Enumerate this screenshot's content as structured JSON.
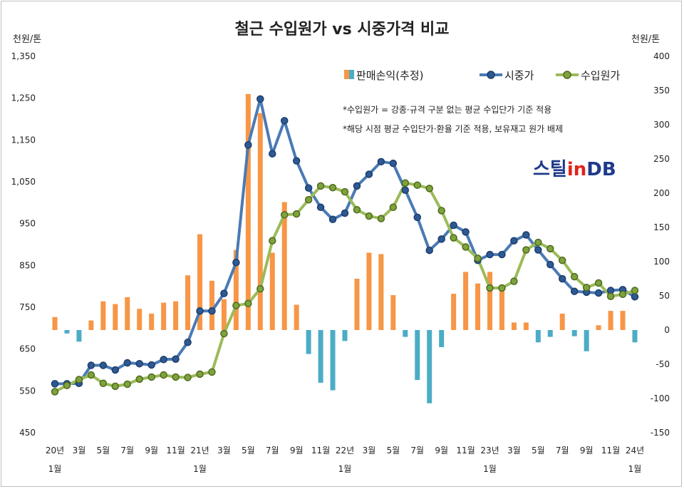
{
  "chart_data": {
    "type": "bar+line",
    "title": "철근 수입원가 vs 시중가격 비교",
    "y_left_unit": "천원/톤",
    "y_right_unit": "천원/톤",
    "y_left_ticks": [
      "1,350",
      "1,250",
      "1,150",
      "1,050",
      "950",
      "850",
      "750",
      "650",
      "550",
      "450"
    ],
    "y_left_range": [
      450,
      1350
    ],
    "y_right_ticks": [
      "400",
      "350",
      "300",
      "250",
      "200",
      "150",
      "100",
      "50",
      "0",
      "-50",
      "-100",
      "-150"
    ],
    "y_right_range": [
      -150,
      400
    ],
    "x_tick_labels": [
      {
        "i": 0,
        "label": "20년",
        "sub": "1월"
      },
      {
        "i": 2,
        "label": "3월"
      },
      {
        "i": 4,
        "label": "5월"
      },
      {
        "i": 6,
        "label": "7월"
      },
      {
        "i": 8,
        "label": "9월"
      },
      {
        "i": 10,
        "label": "11월"
      },
      {
        "i": 12,
        "label": "21년",
        "sub": "1월"
      },
      {
        "i": 14,
        "label": "3월"
      },
      {
        "i": 16,
        "label": "5월"
      },
      {
        "i": 18,
        "label": "7월"
      },
      {
        "i": 20,
        "label": "9월"
      },
      {
        "i": 22,
        "label": "11월"
      },
      {
        "i": 24,
        "label": "22년",
        "sub": "1월"
      },
      {
        "i": 26,
        "label": "3월"
      },
      {
        "i": 28,
        "label": "5월"
      },
      {
        "i": 30,
        "label": "7월"
      },
      {
        "i": 32,
        "label": "9월"
      },
      {
        "i": 34,
        "label": "11월"
      },
      {
        "i": 36,
        "label": "23년",
        "sub": "1월"
      },
      {
        "i": 38,
        "label": "3월"
      },
      {
        "i": 40,
        "label": "5월"
      },
      {
        "i": 42,
        "label": "7월"
      },
      {
        "i": 44,
        "label": "9월"
      },
      {
        "i": 46,
        "label": "11월"
      },
      {
        "i": 48,
        "label": "24년",
        "sub": "1월"
      }
    ],
    "series": [
      {
        "name": "판매손익(추정)",
        "axis": "right",
        "kind": "bar",
        "values": [
          19,
          -5,
          -17,
          14,
          42,
          38,
          48,
          31,
          24,
          40,
          42,
          80,
          140,
          72,
          45,
          117,
          345,
          317,
          113,
          187,
          37,
          -35,
          -77,
          -88,
          -16,
          75,
          113,
          111,
          51,
          -10,
          -73,
          -107,
          -25,
          53,
          85,
          68,
          85,
          64,
          11,
          11,
          -18,
          -10,
          24,
          -9,
          -31,
          7,
          28,
          28,
          -18
        ]
      },
      {
        "name": "시중가",
        "axis": "left",
        "kind": "line",
        "color": "#4a7ab5",
        "values": [
          567,
          567,
          568,
          611,
          611,
          600,
          617,
          615,
          612,
          625,
          626,
          666,
          741,
          741,
          783,
          857,
          1138,
          1248,
          1117,
          1196,
          1100,
          1035,
          989,
          960,
          975,
          1040,
          1068,
          1098,
          1094,
          1030,
          965,
          886,
          913,
          946,
          930,
          862,
          876,
          876,
          909,
          923,
          887,
          852,
          818,
          788,
          786,
          784,
          790,
          792,
          775
        ]
      },
      {
        "name": "수입원가",
        "axis": "left",
        "kind": "line",
        "color": "#9bbb59",
        "values": [
          548,
          563,
          577,
          588,
          568,
          561,
          566,
          578,
          583,
          588,
          583,
          582,
          590,
          595,
          687,
          754,
          759,
          794,
          909,
          971,
          973,
          1007,
          1040,
          1036,
          1026,
          983,
          968,
          962,
          989,
          1047,
          1042,
          1034,
          981,
          916,
          894,
          867,
          796,
          796,
          812,
          887,
          905,
          890,
          862,
          823,
          797,
          808,
          776,
          781,
          790
        ]
      }
    ],
    "legend_position": "top-right",
    "grid": false,
    "notes": [
      "*수입원가 = 강종·규격 구분 없는 평균 수입단가 기준 적용",
      "*해당 시점 평균 수입단가·환율 기준 적용, 보유재고 원가 배제"
    ],
    "bar_colors": {
      "positive": "#f79646",
      "negative": "#4bacc6"
    },
    "logo": {
      "text_a": "스틸",
      "text_b": "in",
      "text_c": "DB",
      "color_a": "#1f3a8a",
      "color_b": "#e2231a",
      "color_c": "#1f3a8a"
    }
  }
}
